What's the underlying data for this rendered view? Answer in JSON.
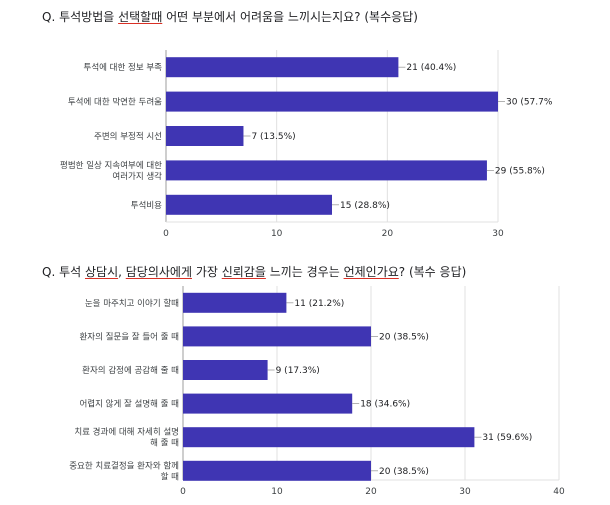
{
  "q1": {
    "title_parts": [
      {
        "text": "Q. 투석방법을 ",
        "u": false
      },
      {
        "text": "선택할때",
        "u": true
      },
      {
        "text": " 어떤 부분에서 어려움을 느끼시는지요? (복수응답)",
        "u": false
      }
    ]
  },
  "q2": {
    "title_parts": [
      {
        "text": "Q. 투석 ",
        "u": false
      },
      {
        "text": "상담시",
        "u": true
      },
      {
        "text": ", ",
        "u": false
      },
      {
        "text": "담당의사에게",
        "u": true
      },
      {
        "text": " 가장 ",
        "u": false
      },
      {
        "text": "신뢰감을",
        "u": true
      },
      {
        "text": " 느끼는 경우는 ",
        "u": false
      },
      {
        "text": "언제인가요",
        "u": true
      },
      {
        "text": "? (복수 응답)",
        "u": false
      }
    ]
  },
  "colors": {
    "bar": "#3f35b3",
    "grid": "#e0e0e0"
  },
  "chart_data": [
    {
      "type": "bar",
      "orientation": "horizontal",
      "categories": [
        "투석에 대한 정보 부족",
        "투석에 대한 막연한 두려움",
        "주변의 부정적 시선",
        "평범한 일상 지속여부에 대한\n여러가지 생각",
        "투석비용"
      ],
      "values": [
        21,
        30,
        7,
        29,
        15
      ],
      "value_labels": [
        "21 (40.4%)",
        "30 (57.7%",
        "7 (13.5%)",
        "29 (55.8%)",
        "15 (28.8%)"
      ],
      "xlim": [
        0,
        30
      ],
      "ticks": [
        "0",
        "10",
        "20",
        "30"
      ],
      "grid": true,
      "legend": "none"
    },
    {
      "type": "bar",
      "orientation": "horizontal",
      "categories": [
        "눈을 마주치고 이야기 할때",
        "환자의 질문을 잘 들어 줄 때",
        "환자의 감정에 공감해 줄 때",
        "어렵지 않게 잘 설명해 줄 때",
        "치료 경과에 대해 자세히 설명\n해 줄 때",
        "중요한 치료결정을 환자와 함께\n할 때"
      ],
      "values": [
        11,
        20,
        9,
        18,
        31,
        20
      ],
      "value_labels": [
        "11 (21.2%)",
        "20 (38.5%)",
        "9 (17.3%)",
        "18 (34.6%)",
        "31 (59.6%)",
        "20 (38.5%)"
      ],
      "xlim": [
        0,
        40
      ],
      "ticks": [
        "0",
        "10",
        "20",
        "30",
        "40"
      ],
      "grid": true,
      "legend": "none"
    }
  ]
}
